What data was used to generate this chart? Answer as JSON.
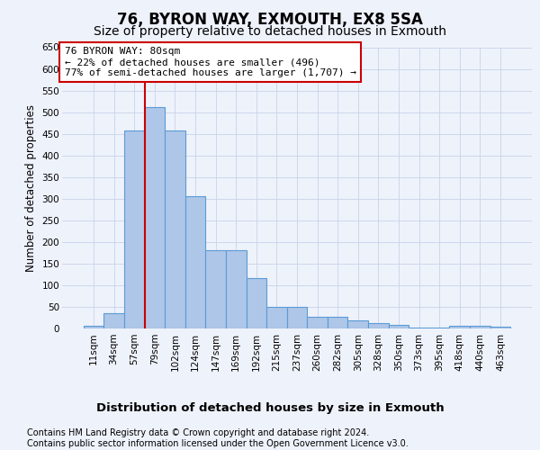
{
  "title": "76, BYRON WAY, EXMOUTH, EX8 5SA",
  "subtitle": "Size of property relative to detached houses in Exmouth",
  "xlabel": "Distribution of detached houses by size in Exmouth",
  "ylabel": "Number of detached properties",
  "categories": [
    "11sqm",
    "34sqm",
    "57sqm",
    "79sqm",
    "102sqm",
    "124sqm",
    "147sqm",
    "169sqm",
    "192sqm",
    "215sqm",
    "237sqm",
    "260sqm",
    "282sqm",
    "305sqm",
    "328sqm",
    "350sqm",
    "373sqm",
    "395sqm",
    "418sqm",
    "440sqm",
    "463sqm"
  ],
  "values": [
    7,
    35,
    457,
    512,
    457,
    305,
    180,
    180,
    117,
    50,
    50,
    27,
    27,
    18,
    12,
    9,
    3,
    3,
    7,
    7,
    4
  ],
  "bar_color": "#aec6e8",
  "bar_edge_color": "#5b9bd5",
  "grid_color": "#c8d4e8",
  "background_color": "#eef2fb",
  "vline_x_index": 3,
  "vline_color": "#cc0000",
  "annotation_text": "76 BYRON WAY: 80sqm\n← 22% of detached houses are smaller (496)\n77% of semi-detached houses are larger (1,707) →",
  "annotation_box_edgecolor": "#cc0000",
  "footnote1": "Contains HM Land Registry data © Crown copyright and database right 2024.",
  "footnote2": "Contains public sector information licensed under the Open Government Licence v3.0.",
  "ylim": [
    0,
    650
  ],
  "yticks": [
    0,
    50,
    100,
    150,
    200,
    250,
    300,
    350,
    400,
    450,
    500,
    550,
    600,
    650
  ],
  "title_fontsize": 12,
  "subtitle_fontsize": 10,
  "xlabel_fontsize": 9.5,
  "ylabel_fontsize": 8.5,
  "tick_fontsize": 7.5,
  "annotation_fontsize": 8,
  "footnote_fontsize": 7
}
